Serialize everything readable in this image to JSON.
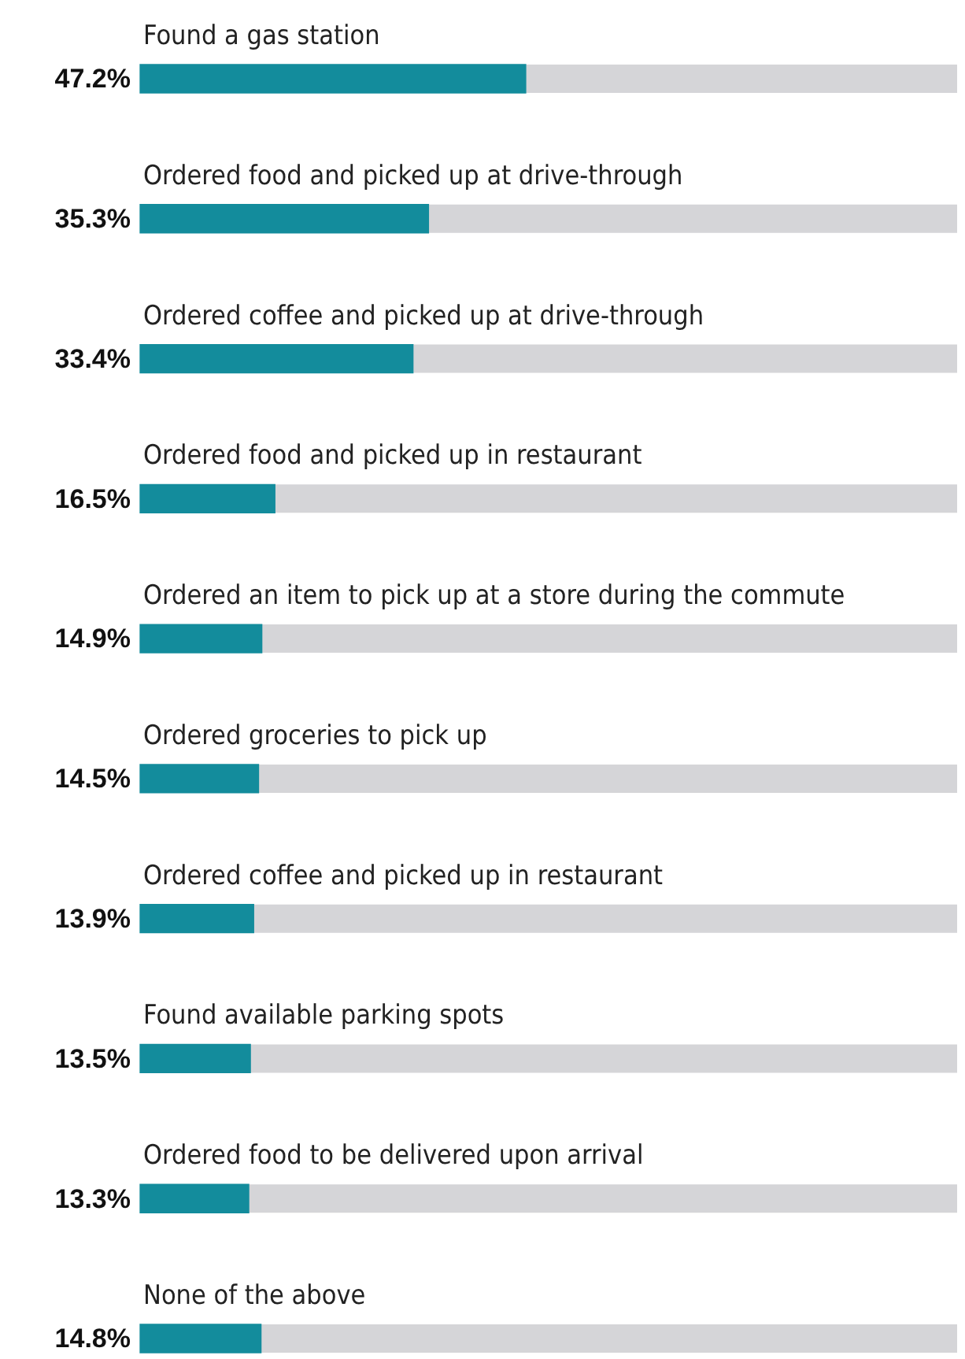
{
  "chart_data": {
    "type": "bar",
    "orientation": "horizontal",
    "categories": [
      "Found a gas station",
      "Ordered food and picked up at drive-through",
      "Ordered coffee and picked up at drive-through",
      "Ordered food and picked up in restaurant",
      "Ordered an item to pick up at a store during the commute",
      "Ordered groceries to pick up",
      "Ordered coffee and picked up in restaurant",
      "Found available parking spots",
      "Ordered food to be delivered upon arrival",
      "None of the above"
    ],
    "values": [
      47.2,
      35.3,
      33.4,
      16.5,
      14.9,
      14.5,
      13.9,
      13.5,
      13.3,
      14.8
    ],
    "value_labels": [
      "47.2%",
      "35.3%",
      "33.4%",
      "16.5%",
      "14.9%",
      "14.5%",
      "13.9%",
      "13.5%",
      "13.3%",
      "14.8%"
    ],
    "color": "#138c9c",
    "xlim": [
      0,
      100
    ]
  }
}
